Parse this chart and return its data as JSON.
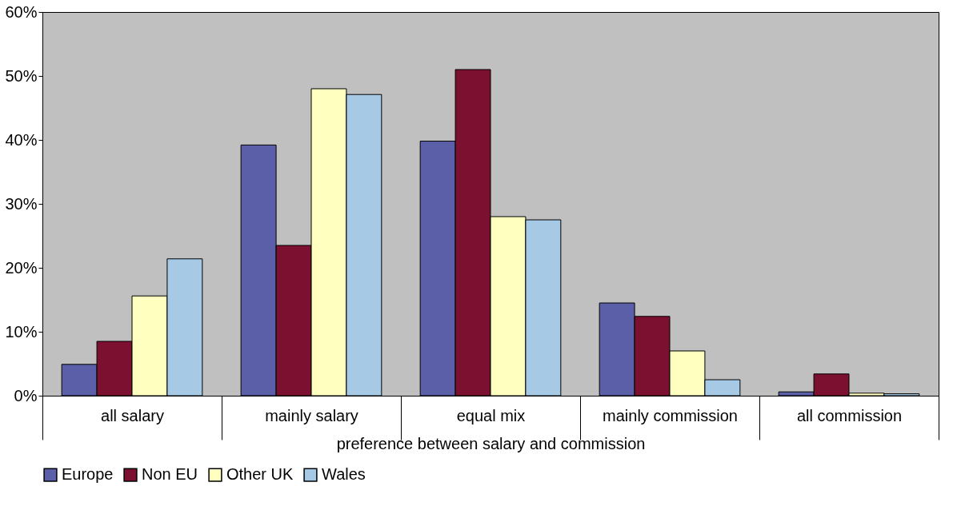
{
  "chart_data": {
    "type": "bar",
    "xlabel": "preference between salary and commission",
    "categories": [
      "all salary",
      "mainly salary",
      "equal mix",
      "mainly commission",
      "all commission"
    ],
    "series": [
      {
        "name": "Europe",
        "color": "#5a5fa8",
        "values": [
          4.9,
          39.2,
          39.8,
          14.5,
          0.6
        ]
      },
      {
        "name": "Non EU",
        "color": "#7b1030",
        "values": [
          8.5,
          23.5,
          51,
          12.4,
          3.4
        ]
      },
      {
        "name": "Other UK",
        "color": "#ffffc0",
        "values": [
          15.6,
          48,
          28,
          7,
          0.4
        ]
      },
      {
        "name": "Wales",
        "color": "#a6cae6",
        "values": [
          21.4,
          47.1,
          27.5,
          2.5,
          0.3
        ]
      }
    ],
    "ylim": [
      0,
      60
    ],
    "yticks": [
      {
        "value": 0,
        "label": "0%"
      },
      {
        "value": 10,
        "label": "10%"
      },
      {
        "value": 20,
        "label": "20%"
      },
      {
        "value": 30,
        "label": "30%"
      },
      {
        "value": 40,
        "label": "40%"
      },
      {
        "value": 50,
        "label": "50%"
      },
      {
        "value": 60,
        "label": "60%"
      }
    ],
    "grid": false,
    "legend": "bottom"
  }
}
